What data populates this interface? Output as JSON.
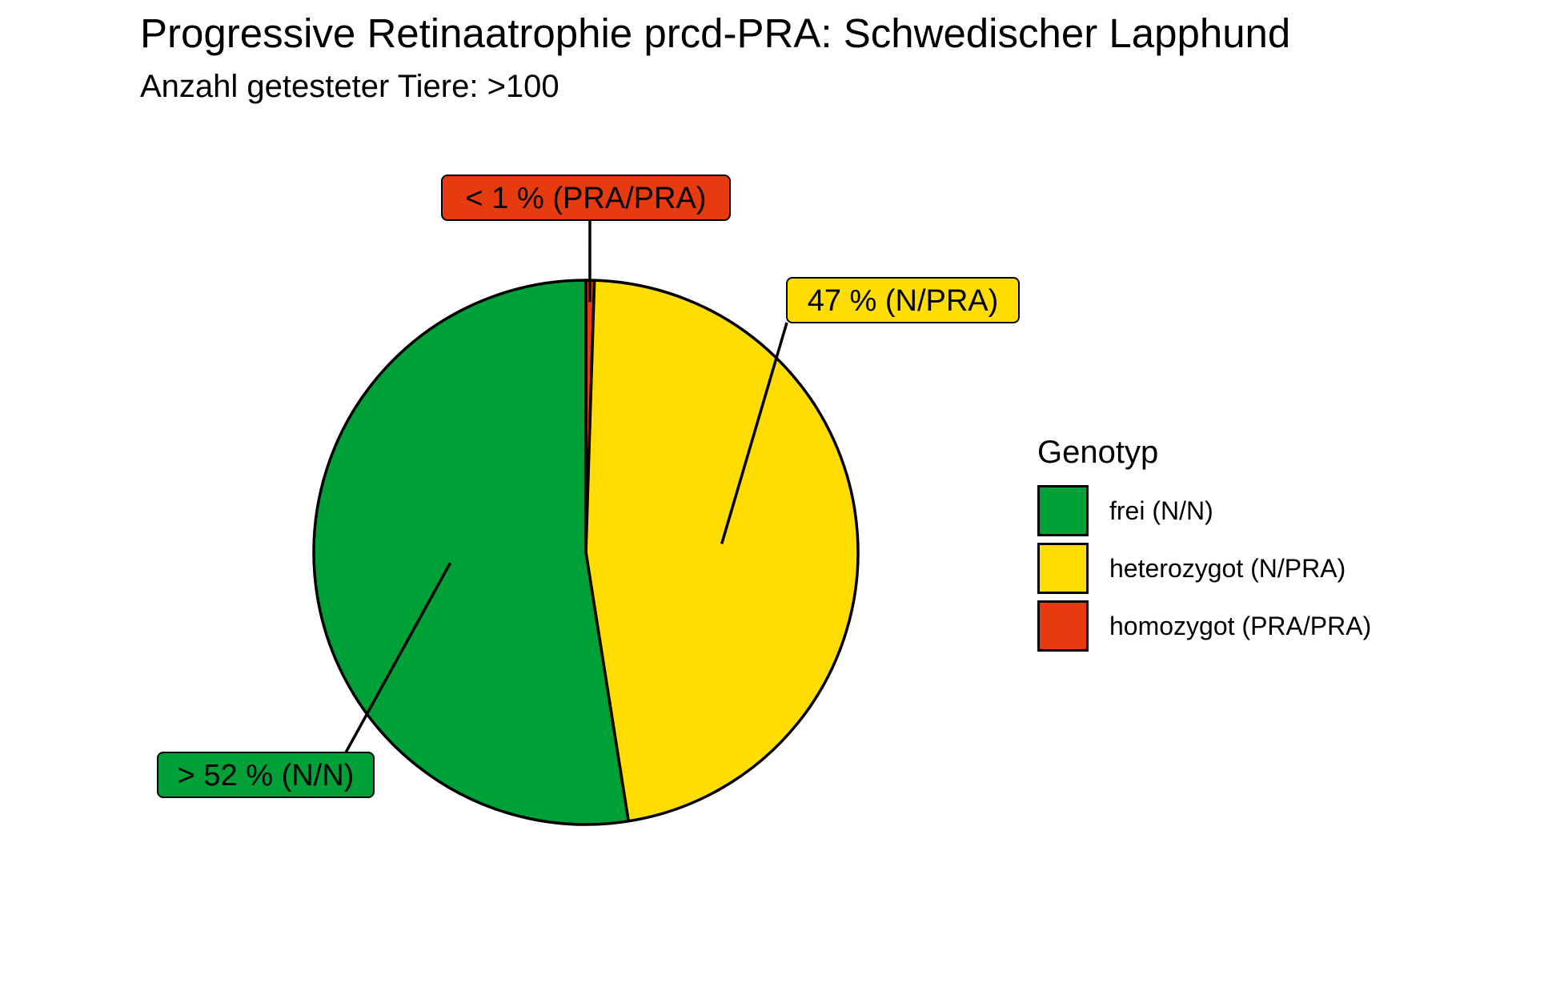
{
  "chart_data": {
    "type": "pie",
    "title": "Progressive Retinaatrophie prcd-PRA: Schwedischer Lapphund",
    "subtitle": "Anzahl getesteter Tiere: >100",
    "legend_title": "Genotyp",
    "legend_position": "right",
    "slices": [
      {
        "name": "homozygot (PRA/PRA)",
        "value": 0.5,
        "label": "< 1 % (PRA/PRA)",
        "color": "#E83A0F"
      },
      {
        "name": "heterozygot (N/PRA)",
        "value": 47,
        "label": "47 % (N/PRA)",
        "color": "#FFDD00"
      },
      {
        "name": "frei (N/N)",
        "value": 52.5,
        "label": "> 52 % (N/N)",
        "color": "#00A038"
      }
    ],
    "legend": [
      {
        "label": "frei (N/N)",
        "color": "#00A038"
      },
      {
        "label": "heterozygot (N/PRA)",
        "color": "#FFDD00"
      },
      {
        "label": "homozygot (PRA/PRA)",
        "color": "#E83A0F"
      }
    ]
  }
}
